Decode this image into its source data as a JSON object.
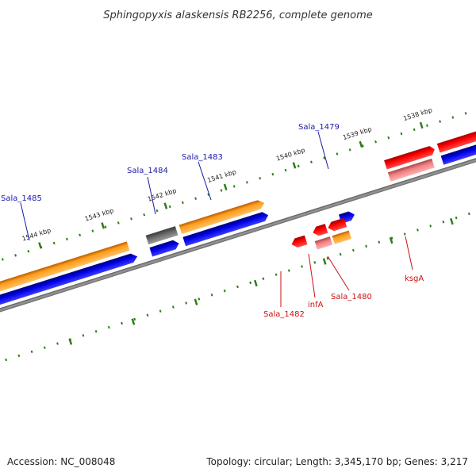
{
  "title": "Sphingopyxis alaskensis RB2256, complete genome",
  "ticks_kbp": [
    "1538 kbp",
    "1539 kbp",
    "1540 kbp",
    "1541 kbp",
    "1542 kbp",
    "1543 kbp",
    "1544 kbp"
  ],
  "gene_labels": {
    "blue": [
      "Sala_1485",
      "Sala_1484",
      "Sala_1483",
      "Sala_1479"
    ],
    "red": [
      "Sala_1482",
      "infA",
      "Sala_1480",
      "ksgA"
    ]
  },
  "footer": {
    "accession": "Accession: NC_008048",
    "summary": "Topology: circular; Length: 3,345,170 bp; Genes: 3,217"
  },
  "colors": {
    "orange": "#ff9900",
    "orange_dark": "#cc6600",
    "blue": "#0000dd",
    "blue_dark": "#00007a",
    "red": "#ff0000",
    "red_dark": "#990000",
    "pink": "#f08080",
    "gray": "#7a7a7a",
    "dot_green": "#2e7d1a"
  }
}
